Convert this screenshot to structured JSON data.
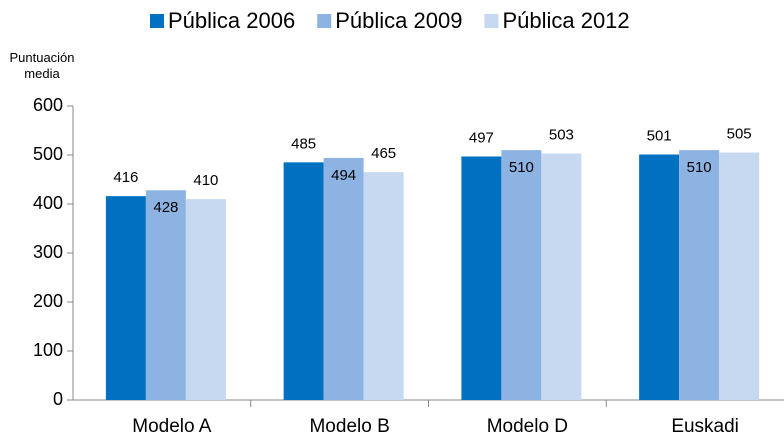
{
  "chart_data": {
    "type": "bar",
    "y_label": "Puntuación media",
    "categories": [
      "Modelo A",
      "Modelo B",
      "Modelo D",
      "Euskadi"
    ],
    "series": [
      {
        "name": "Pública 2006",
        "color": "#0070c0",
        "values": [
          416,
          485,
          497,
          501
        ]
      },
      {
        "name": "Pública 2009",
        "color": "#8db3e2",
        "values": [
          428,
          494,
          510,
          510
        ]
      },
      {
        "name": "Pública 2012",
        "color": "#c6d9f1",
        "values": [
          410,
          465,
          503,
          505
        ]
      }
    ],
    "ylim": [
      0,
      600
    ],
    "yticks": [
      0,
      100,
      200,
      300,
      400,
      500,
      600
    ],
    "grid": false,
    "legend": "top"
  }
}
